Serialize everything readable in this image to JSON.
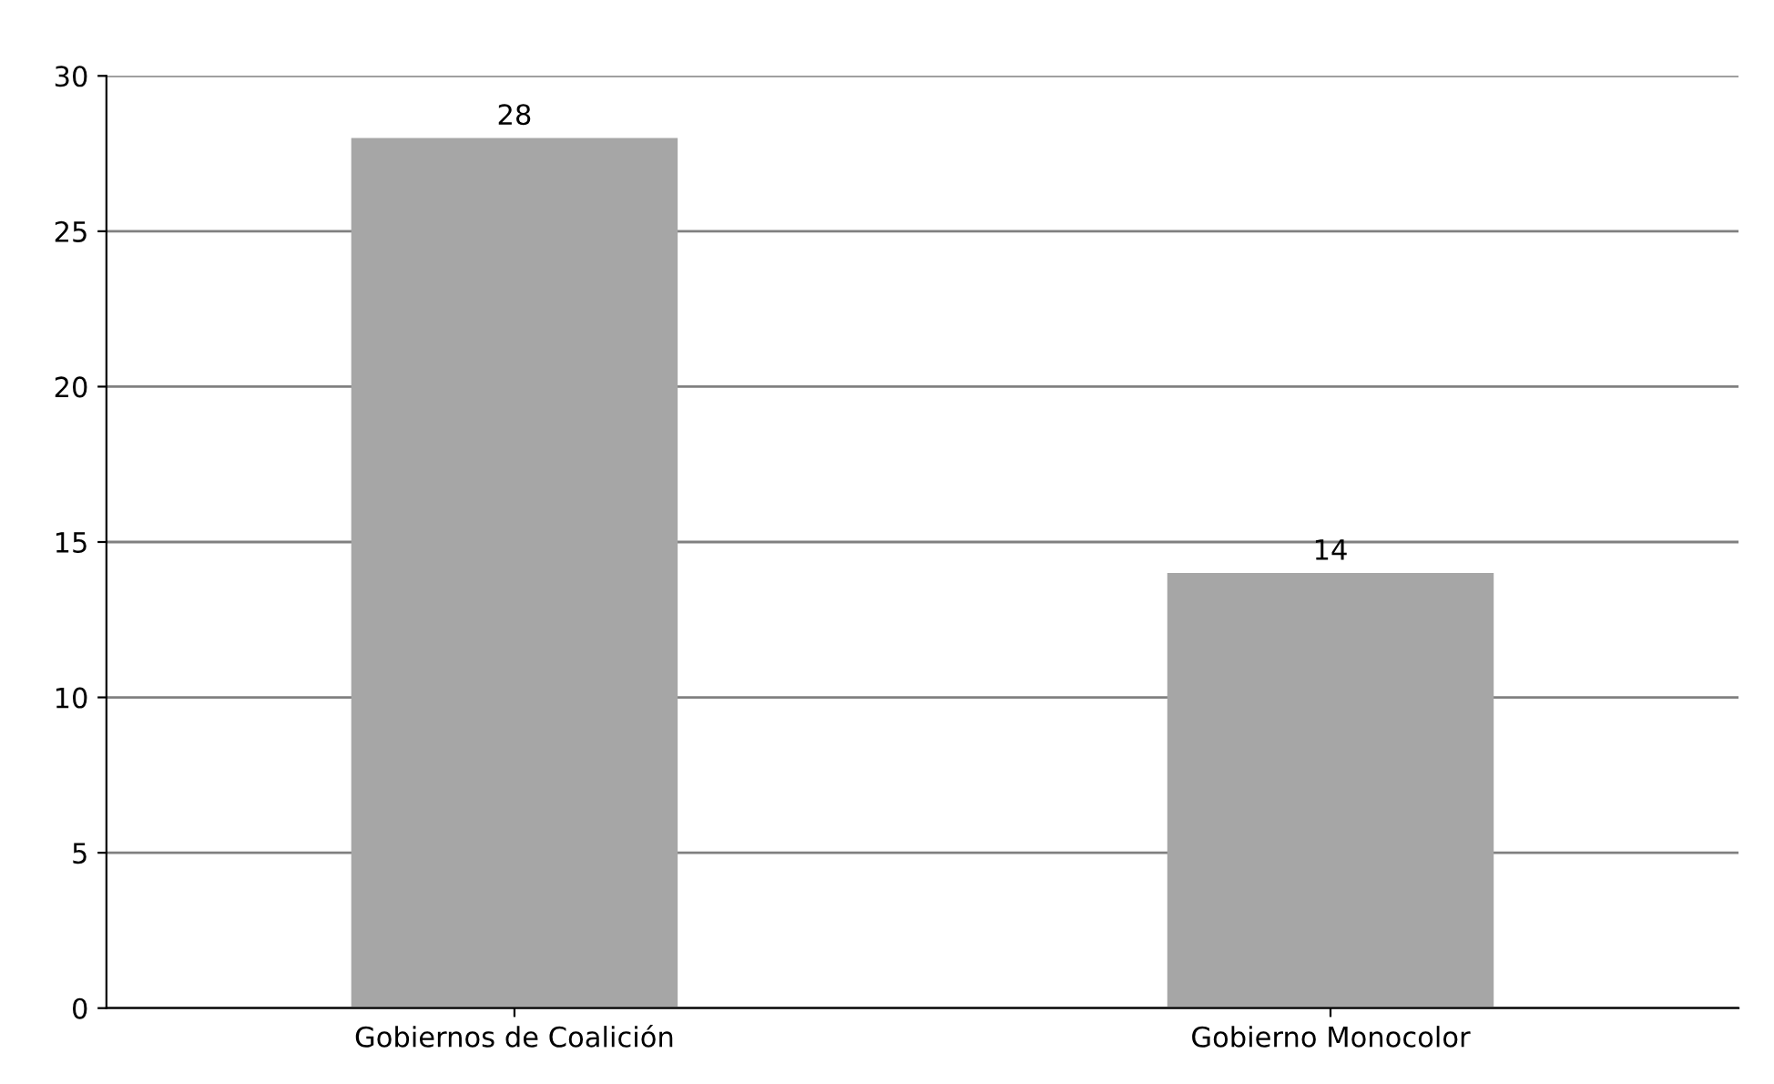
{
  "chart_data": {
    "type": "bar",
    "categories": [
      "Gobiernos de Coalición",
      "Gobierno Monocolor"
    ],
    "values": [
      28,
      14
    ],
    "color": "#a6a6a6",
    "ylim": [
      0,
      30
    ],
    "yticks": [
      0,
      5,
      10,
      15,
      20,
      25,
      30
    ],
    "grid": "y",
    "data_labels": true
  }
}
